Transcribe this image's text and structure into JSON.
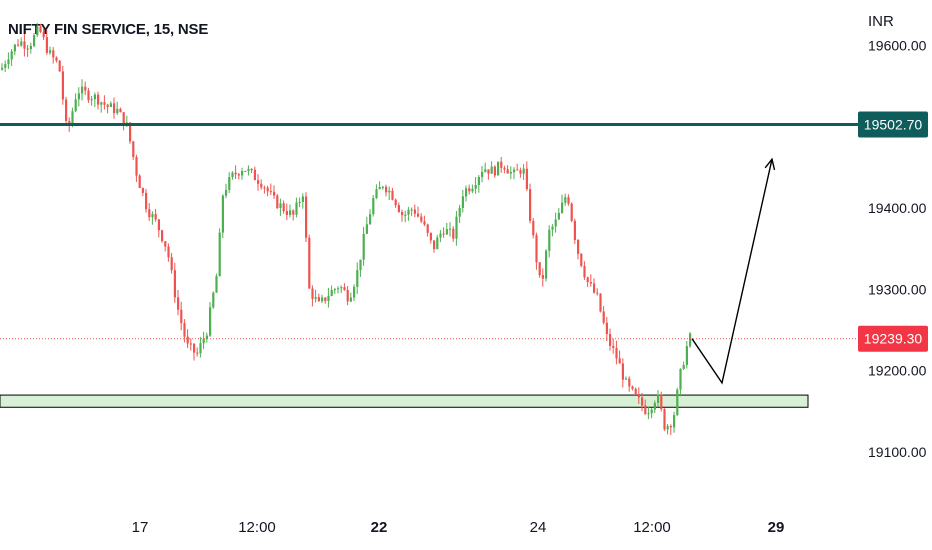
{
  "header": {
    "title": "NIFTY FIN SERVICE, 15, NSE",
    "currency": "INR"
  },
  "colors": {
    "up": "#26a69a",
    "up_candle": "#4caf50",
    "down": "#ef5350",
    "resistance": "#0f5c5c",
    "support_fill": "#d8f0d6",
    "arrow": "#000000",
    "last_price_badge": "#f23645"
  },
  "chart_data": {
    "type": "candlestick",
    "title": "NIFTY FIN SERVICE, 15, NSE",
    "y_unit": "INR",
    "ylim": [
      19050,
      19640
    ],
    "y_ticks": [
      {
        "value": 19600,
        "label": "19600.00"
      },
      {
        "value": 19400,
        "label": "19400.00"
      },
      {
        "value": 19300,
        "label": "19300.00"
      },
      {
        "value": 19200,
        "label": "19200.00"
      },
      {
        "value": 19100,
        "label": "19100.00"
      }
    ],
    "x_ticks": [
      {
        "label": "17",
        "bold": false
      },
      {
        "label": "12:00",
        "bold": false
      },
      {
        "label": "22",
        "bold": true
      },
      {
        "label": "24",
        "bold": false
      },
      {
        "label": "12:00",
        "bold": false
      },
      {
        "label": "29",
        "bold": true
      }
    ],
    "price_path": [
      [
        0,
        19570
      ],
      [
        8,
        19590
      ],
      [
        18,
        19605
      ],
      [
        28,
        19600
      ],
      [
        38,
        19620
      ],
      [
        48,
        19590
      ],
      [
        58,
        19575
      ],
      [
        66,
        19490
      ],
      [
        76,
        19545
      ],
      [
        86,
        19540
      ],
      [
        96,
        19535
      ],
      [
        106,
        19525
      ],
      [
        116,
        19520
      ],
      [
        126,
        19500
      ],
      [
        136,
        19440
      ],
      [
        146,
        19400
      ],
      [
        156,
        19380
      ],
      [
        166,
        19350
      ],
      [
        176,
        19280
      ],
      [
        186,
        19230
      ],
      [
        196,
        19220
      ],
      [
        206,
        19250
      ],
      [
        216,
        19320
      ],
      [
        222,
        19420
      ],
      [
        232,
        19440
      ],
      [
        242,
        19450
      ],
      [
        252,
        19440
      ],
      [
        262,
        19430
      ],
      [
        272,
        19410
      ],
      [
        282,
        19400
      ],
      [
        292,
        19390
      ],
      [
        302,
        19420
      ],
      [
        308,
        19300
      ],
      [
        318,
        19280
      ],
      [
        328,
        19295
      ],
      [
        338,
        19305
      ],
      [
        348,
        19290
      ],
      [
        356,
        19320
      ],
      [
        364,
        19370
      ],
      [
        372,
        19410
      ],
      [
        382,
        19430
      ],
      [
        392,
        19415
      ],
      [
        402,
        19390
      ],
      [
        412,
        19400
      ],
      [
        422,
        19380
      ],
      [
        432,
        19350
      ],
      [
        442,
        19375
      ],
      [
        452,
        19365
      ],
      [
        462,
        19420
      ],
      [
        472,
        19430
      ],
      [
        482,
        19450
      ],
      [
        492,
        19445
      ],
      [
        502,
        19455
      ],
      [
        512,
        19440
      ],
      [
        522,
        19450
      ],
      [
        530,
        19380
      ],
      [
        540,
        19300
      ],
      [
        548,
        19370
      ],
      [
        556,
        19385
      ],
      [
        566,
        19420
      ],
      [
        576,
        19350
      ],
      [
        586,
        19310
      ],
      [
        596,
        19290
      ],
      [
        606,
        19240
      ],
      [
        616,
        19215
      ],
      [
        626,
        19180
      ],
      [
        636,
        19165
      ],
      [
        646,
        19150
      ],
      [
        656,
        19170
      ],
      [
        664,
        19130
      ],
      [
        672,
        19140
      ],
      [
        680,
        19200
      ],
      [
        688,
        19240
      ],
      [
        692,
        19239.3
      ]
    ],
    "resistance": {
      "value": 19502.7,
      "label": "19502.70"
    },
    "last_price": {
      "value": 19239.3,
      "label": "19239.30"
    },
    "support_zone": [
      19155,
      19170
    ],
    "projection_path": [
      [
        692,
        19239.3
      ],
      [
        722,
        19185
      ],
      [
        772,
        19460
      ]
    ]
  }
}
